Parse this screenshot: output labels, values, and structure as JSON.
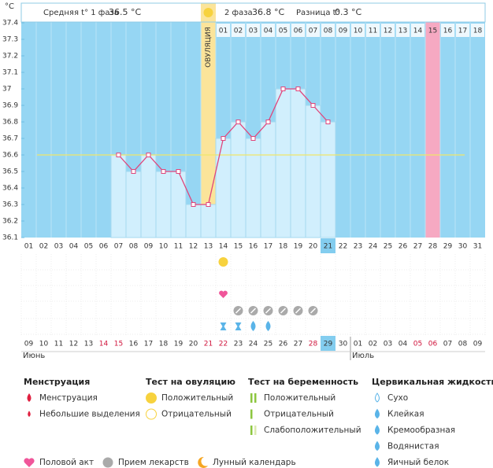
{
  "header": {
    "phase1_label": "Средняя t° 1 фаза",
    "phase1_value": "36.5 °C",
    "phase2_label": "2 фаза",
    "phase2_value": "36.8 °C",
    "diff_label": "Разница t°",
    "diff_value": "0.3 °C"
  },
  "chart_data": {
    "type": "line",
    "y_unit": "°C",
    "color": "#e0457b",
    "categories": [
      "01",
      "02",
      "03",
      "04",
      "05",
      "06",
      "07",
      "08",
      "09",
      "10",
      "11",
      "12",
      "13",
      "14",
      "15",
      "16",
      "17",
      "18",
      "19",
      "20",
      "21",
      "22",
      "23",
      "24",
      "25",
      "26",
      "27",
      "28",
      "29",
      "30",
      "31"
    ],
    "values": [
      null,
      null,
      null,
      null,
      null,
      null,
      36.6,
      36.5,
      36.6,
      36.5,
      36.5,
      36.3,
      36.3,
      36.7,
      36.8,
      36.7,
      36.8,
      37,
      37,
      36.9,
      36.8,
      null,
      null,
      null,
      null,
      null,
      null,
      null,
      null,
      null,
      null
    ],
    "cycle_days": [
      null,
      null,
      null,
      null,
      null,
      null,
      null,
      null,
      null,
      null,
      null,
      null,
      null,
      "01",
      "02",
      "03",
      "04",
      "05",
      "06",
      "07",
      "08",
      "09",
      "10",
      "11",
      "12",
      "13",
      "14",
      "15",
      "16",
      "17",
      "18"
    ],
    "ylim": [
      36.1,
      37.4
    ],
    "yticks": [
      36.1,
      36.2,
      36.3,
      36.4,
      36.5,
      36.6,
      36.7,
      36.8,
      36.9,
      37,
      37.1,
      37.2,
      37.3,
      37.4
    ],
    "coverline": 36.6,
    "ovulation_day": "13",
    "ovulation_label": "ОВУЛЯЦИЯ",
    "marked_day": "28",
    "today": "21",
    "events": {
      "ovulation_test": [
        "14"
      ],
      "intercourse": [
        "14"
      ],
      "medication": [
        "15",
        "16",
        "17",
        "18",
        "19",
        "20"
      ],
      "sticky": [
        "14",
        "15"
      ],
      "egg_white": [
        "16",
        "17"
      ]
    },
    "dates": [
      "09",
      "10",
      "11",
      "12",
      "13",
      "14",
      "15",
      "16",
      "17",
      "18",
      "19",
      "20",
      "21",
      "22",
      "23",
      "24",
      "25",
      "26",
      "27",
      "28",
      "29",
      "30",
      "01",
      "02",
      "03",
      "04",
      "05",
      "06",
      "07",
      "08",
      "09"
    ],
    "red_dates": [
      5,
      6,
      12,
      13,
      19,
      26,
      27
    ],
    "months": [
      {
        "label": "Июнь",
        "start": 0
      },
      {
        "label": "Июль",
        "start": 22
      }
    ]
  },
  "legend": {
    "groups": [
      {
        "title": "Менструация",
        "items": [
          "Менструация",
          "Небольшие выделения"
        ]
      },
      {
        "title": "Тест на овуляцию",
        "items": [
          "Положительный",
          "Отрицательный"
        ]
      },
      {
        "title": "Тест на беременность",
        "items": [
          "Положительный",
          "Отрицательный",
          "Слабоположительный"
        ]
      },
      {
        "title": "Цервикальная жидкость",
        "items": [
          "Сухо",
          "Клейкая",
          "Кремообразная",
          "Водянистая",
          "Яичный белок"
        ]
      }
    ],
    "bottom": [
      "Половой акт",
      "Прием лекарств",
      "Лунный календарь"
    ]
  }
}
